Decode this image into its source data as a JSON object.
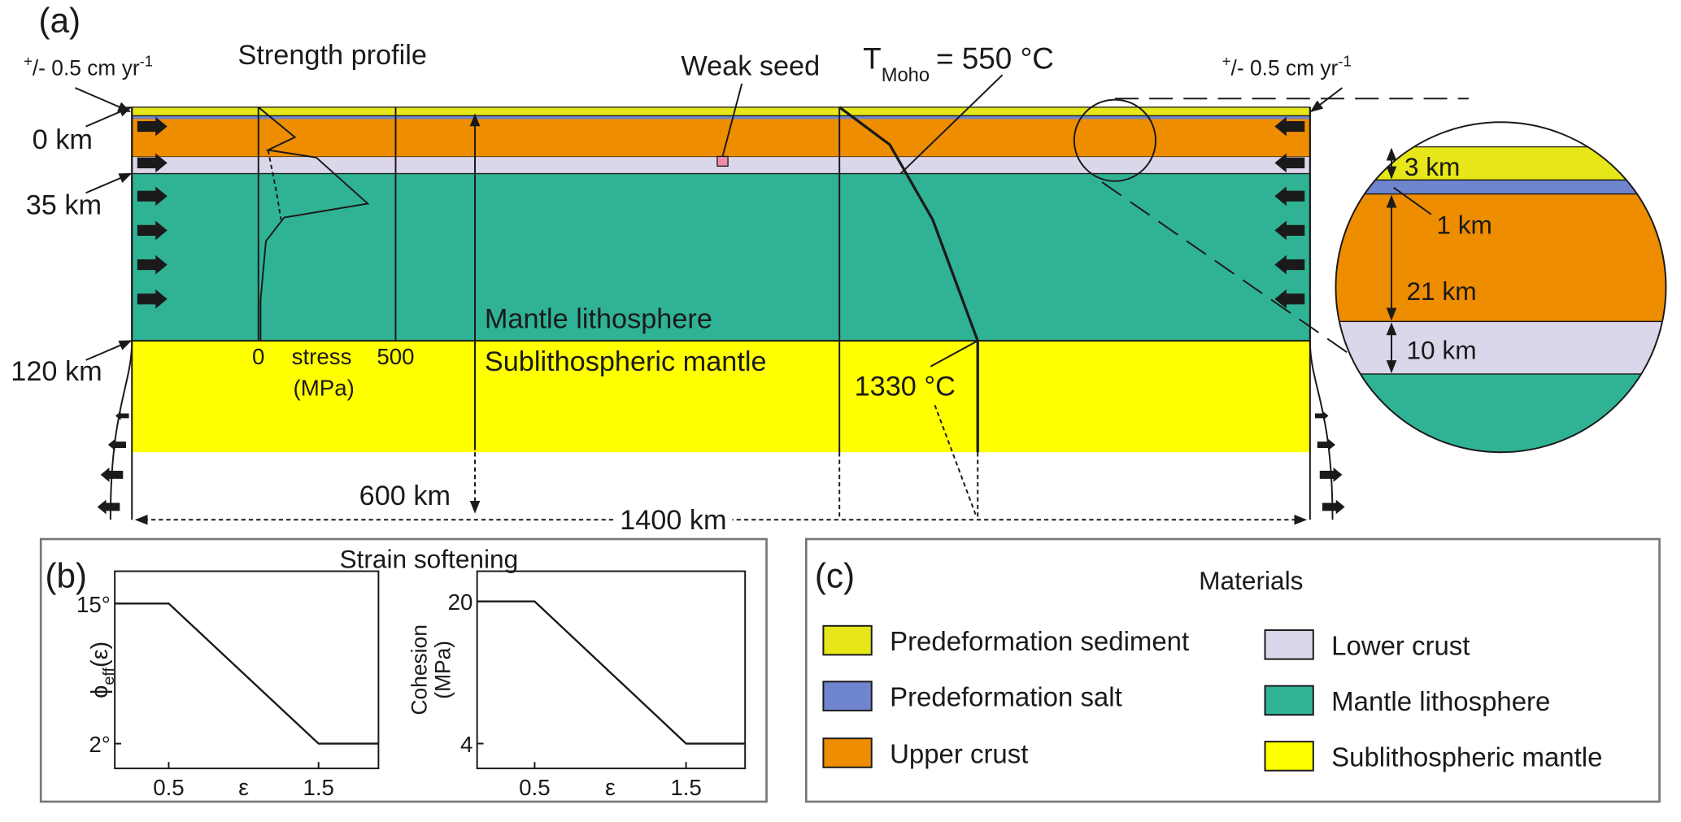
{
  "panel_a": {
    "label": "(a)",
    "velocity_left": {
      "pre": "+",
      "main": "/- 0.5 cm yr",
      "post": "-1"
    },
    "velocity_right": {
      "pre": "+",
      "main": "/- 0.5 cm yr",
      "post": "-1"
    },
    "strength_profile": "Strength profile",
    "weak_seed": "Weak seed",
    "t_moho": {
      "symbol": "T",
      "sub": "Moho",
      "value": "= 550 °C"
    },
    "depth_labels": [
      "0 km",
      "35 km",
      "120 km"
    ],
    "mantle_lithosphere": "Mantle lithosphere",
    "sublithospheric_mantle": "Sublithospheric mantle",
    "stress_ticks": [
      "0",
      "500"
    ],
    "stress_label": [
      "stress",
      "(MPa)"
    ],
    "base_temperature": "1330 °C",
    "depth_extent": "600 km",
    "width_extent": "1400 km",
    "inset_labels": [
      "3 km",
      "1 km",
      "21 km",
      "10 km"
    ]
  },
  "panel_b": {
    "label": "(b)",
    "title": "Strain softening",
    "plots": [
      {
        "y_label": [
          "ϕ",
          "eff",
          "(ε)"
        ],
        "x_label": "ε",
        "xlim": [
          0.14,
          1.9
        ],
        "ylim": [
          -0.3,
          18
        ],
        "xticks": [
          0.5,
          1.5
        ],
        "yticks": [
          {
            "value": 2,
            "label": "2°"
          },
          {
            "value": 15,
            "label": "15°"
          }
        ],
        "x": [
          0.14,
          0.5,
          1.5,
          1.9
        ],
        "values": [
          15,
          15,
          2,
          2
        ]
      },
      {
        "y_label": [
          "Cohesion",
          "(MPa)"
        ],
        "x_label": "ε",
        "xlim": [
          0.12,
          1.89
        ],
        "ylim": [
          1.2,
          23.4
        ],
        "xticks": [
          0.5,
          1.5
        ],
        "yticks": [
          4,
          20
        ],
        "x": [
          0.12,
          0.5,
          1.5,
          1.89
        ],
        "values": [
          20,
          20,
          4,
          4
        ]
      }
    ]
  },
  "panel_c": {
    "label": "(c)",
    "title": "Materials",
    "items": [
      {
        "name": "Predeformation sediment",
        "color": "#e6e619"
      },
      {
        "name": "Predeformation salt",
        "color": "#6f85cf"
      },
      {
        "name": "Upper crust",
        "color": "#ee8d00"
      },
      {
        "name": "Lower crust",
        "color": "#dcd6ea"
      },
      {
        "name": "Mantle lithosphere",
        "color": "#2fb394"
      },
      {
        "name": "Sublithospheric mantle",
        "color": "#ffff00"
      }
    ]
  }
}
